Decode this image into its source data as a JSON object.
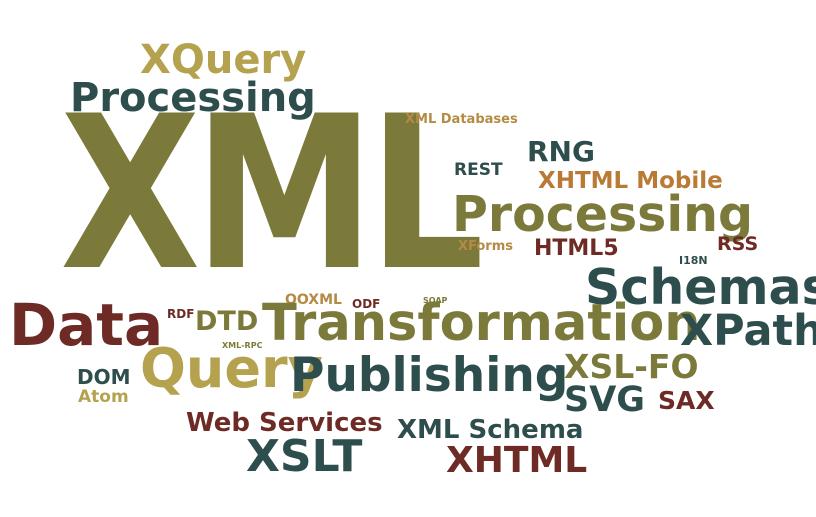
{
  "words": {
    "xml": "XML",
    "xquery": "XQuery",
    "processing_top": "Processing",
    "xml_databases": "XML Databases",
    "rng": "RNG",
    "rest": "REST",
    "xhtml_mobile": "XHTML Mobile",
    "processing_mid": "Processing",
    "xforms": "XForms",
    "html5": "HTML5",
    "i18n": "I18N",
    "rss": "RSS",
    "schemas": "Schemas",
    "ooxml": "OOXML",
    "odf": "ODF",
    "soap": "SOAP",
    "rdf": "RDF",
    "dtd": "DTD",
    "transformation": "Transformation",
    "data": "Data",
    "xpath": "XPath",
    "xml_rpc": "XML-RPC",
    "query": "Query",
    "publishing": "Publishing",
    "xsl_fo": "XSL-FO",
    "dom": "DOM",
    "atom": "Atom",
    "svg": "SVG",
    "sax": "SAX",
    "web_services": "Web Services",
    "xml_schema": "XML Schema",
    "xslt": "XSLT",
    "xhtml": "XHTML"
  },
  "colors": {
    "olive": "#7b7a3a",
    "teal": "#2e4d4d",
    "red": "#6e2a25",
    "gold": "#b5a24e",
    "tan": "#b48a45",
    "orange": "#b97a35",
    "background": "#ffffff"
  }
}
